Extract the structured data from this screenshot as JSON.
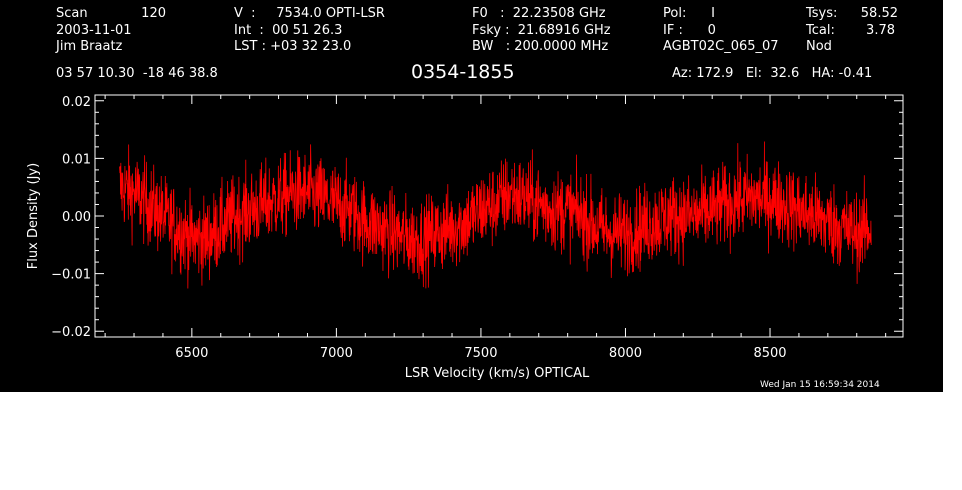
{
  "header": {
    "scan_label": "Scan",
    "scan_number": "120",
    "date": "2003-11-01",
    "observer": "Jim Braatz",
    "ra_dec": "03 57 10.30  -18 46 38.8",
    "velocity": "V  :     7534.0 OPTI-LSR",
    "int_time": "Int  :  00 51 26.3",
    "lst": "LST : +03 32 23.0",
    "f0": "F0   :  22.23508 GHz",
    "fsky": "Fsky :  21.68916 GHz",
    "bw": "BW   : 200.0000 MHz",
    "pol": "Pol:      I",
    "if": "IF :      0",
    "project": "AGBT02C_065_07",
    "tsys_label": "Tsys:",
    "tsys_value": "58.52",
    "tcal_label": "Tcal:",
    "tcal_value": "3.78",
    "mode": "Nod",
    "pointing": "Az: 172.9   El:  32.6   HA: -0.41"
  },
  "footer": {
    "timestamp": "Wed Jan 15 16:59:34 2014"
  },
  "chart_data": {
    "type": "line",
    "title": "0354-1855",
    "xlabel": "LSR Velocity (km/s) OPTICAL",
    "ylabel": "Flux Density (Jy)",
    "xlim": [
      6165,
      8960
    ],
    "ylim": [
      -0.021,
      0.021
    ],
    "xticks": [
      6500,
      7000,
      7500,
      8000,
      8500
    ],
    "xtick_labels": [
      "6500",
      "7000",
      "7500",
      "8000",
      "8500"
    ],
    "yticks": [
      -0.02,
      -0.01,
      0.0,
      0.01,
      0.02
    ],
    "ytick_labels": [
      "−0.02",
      "−0.01",
      "0.00",
      "0.01",
      "0.02"
    ],
    "colors": {
      "background": "#000000",
      "axes": "#ffffff",
      "line": "#ff0000"
    },
    "series": [
      {
        "x": [
          6250,
          6300,
          6350,
          6400,
          6450,
          6500,
          6550,
          6600,
          6650,
          6700,
          6750,
          6800,
          6850,
          6900,
          6950,
          7000,
          7050,
          7100,
          7150,
          7200,
          7250,
          7300,
          7350,
          7400,
          7450,
          7500,
          7550,
          7600,
          7650,
          7700,
          7750,
          7800,
          7850,
          7900,
          7950,
          8000,
          8050,
          8100,
          8150,
          8200,
          8250,
          8300,
          8350,
          8400,
          8450,
          8500,
          8550,
          8600,
          8650,
          8700,
          8750,
          8800,
          8850
        ],
        "values": [
          0.005,
          0.004,
          0.002,
          0.0,
          -0.002,
          -0.004,
          -0.004,
          -0.002,
          0.0,
          0.001,
          0.002,
          0.003,
          0.004,
          0.004,
          0.003,
          0.002,
          0.001,
          -0.001,
          -0.002,
          -0.003,
          -0.004,
          -0.004,
          -0.003,
          -0.002,
          -0.001,
          0.001,
          0.002,
          0.004,
          0.003,
          0.002,
          0.001,
          0.001,
          0.0,
          -0.002,
          -0.003,
          -0.003,
          -0.002,
          -0.001,
          0.0,
          0.0,
          0.0,
          0.001,
          0.002,
          0.003,
          0.003,
          0.003,
          0.002,
          0.001,
          0.0,
          -0.001,
          -0.002,
          -0.003,
          -0.002
        ],
        "noise_rms": 0.0035
      }
    ]
  }
}
